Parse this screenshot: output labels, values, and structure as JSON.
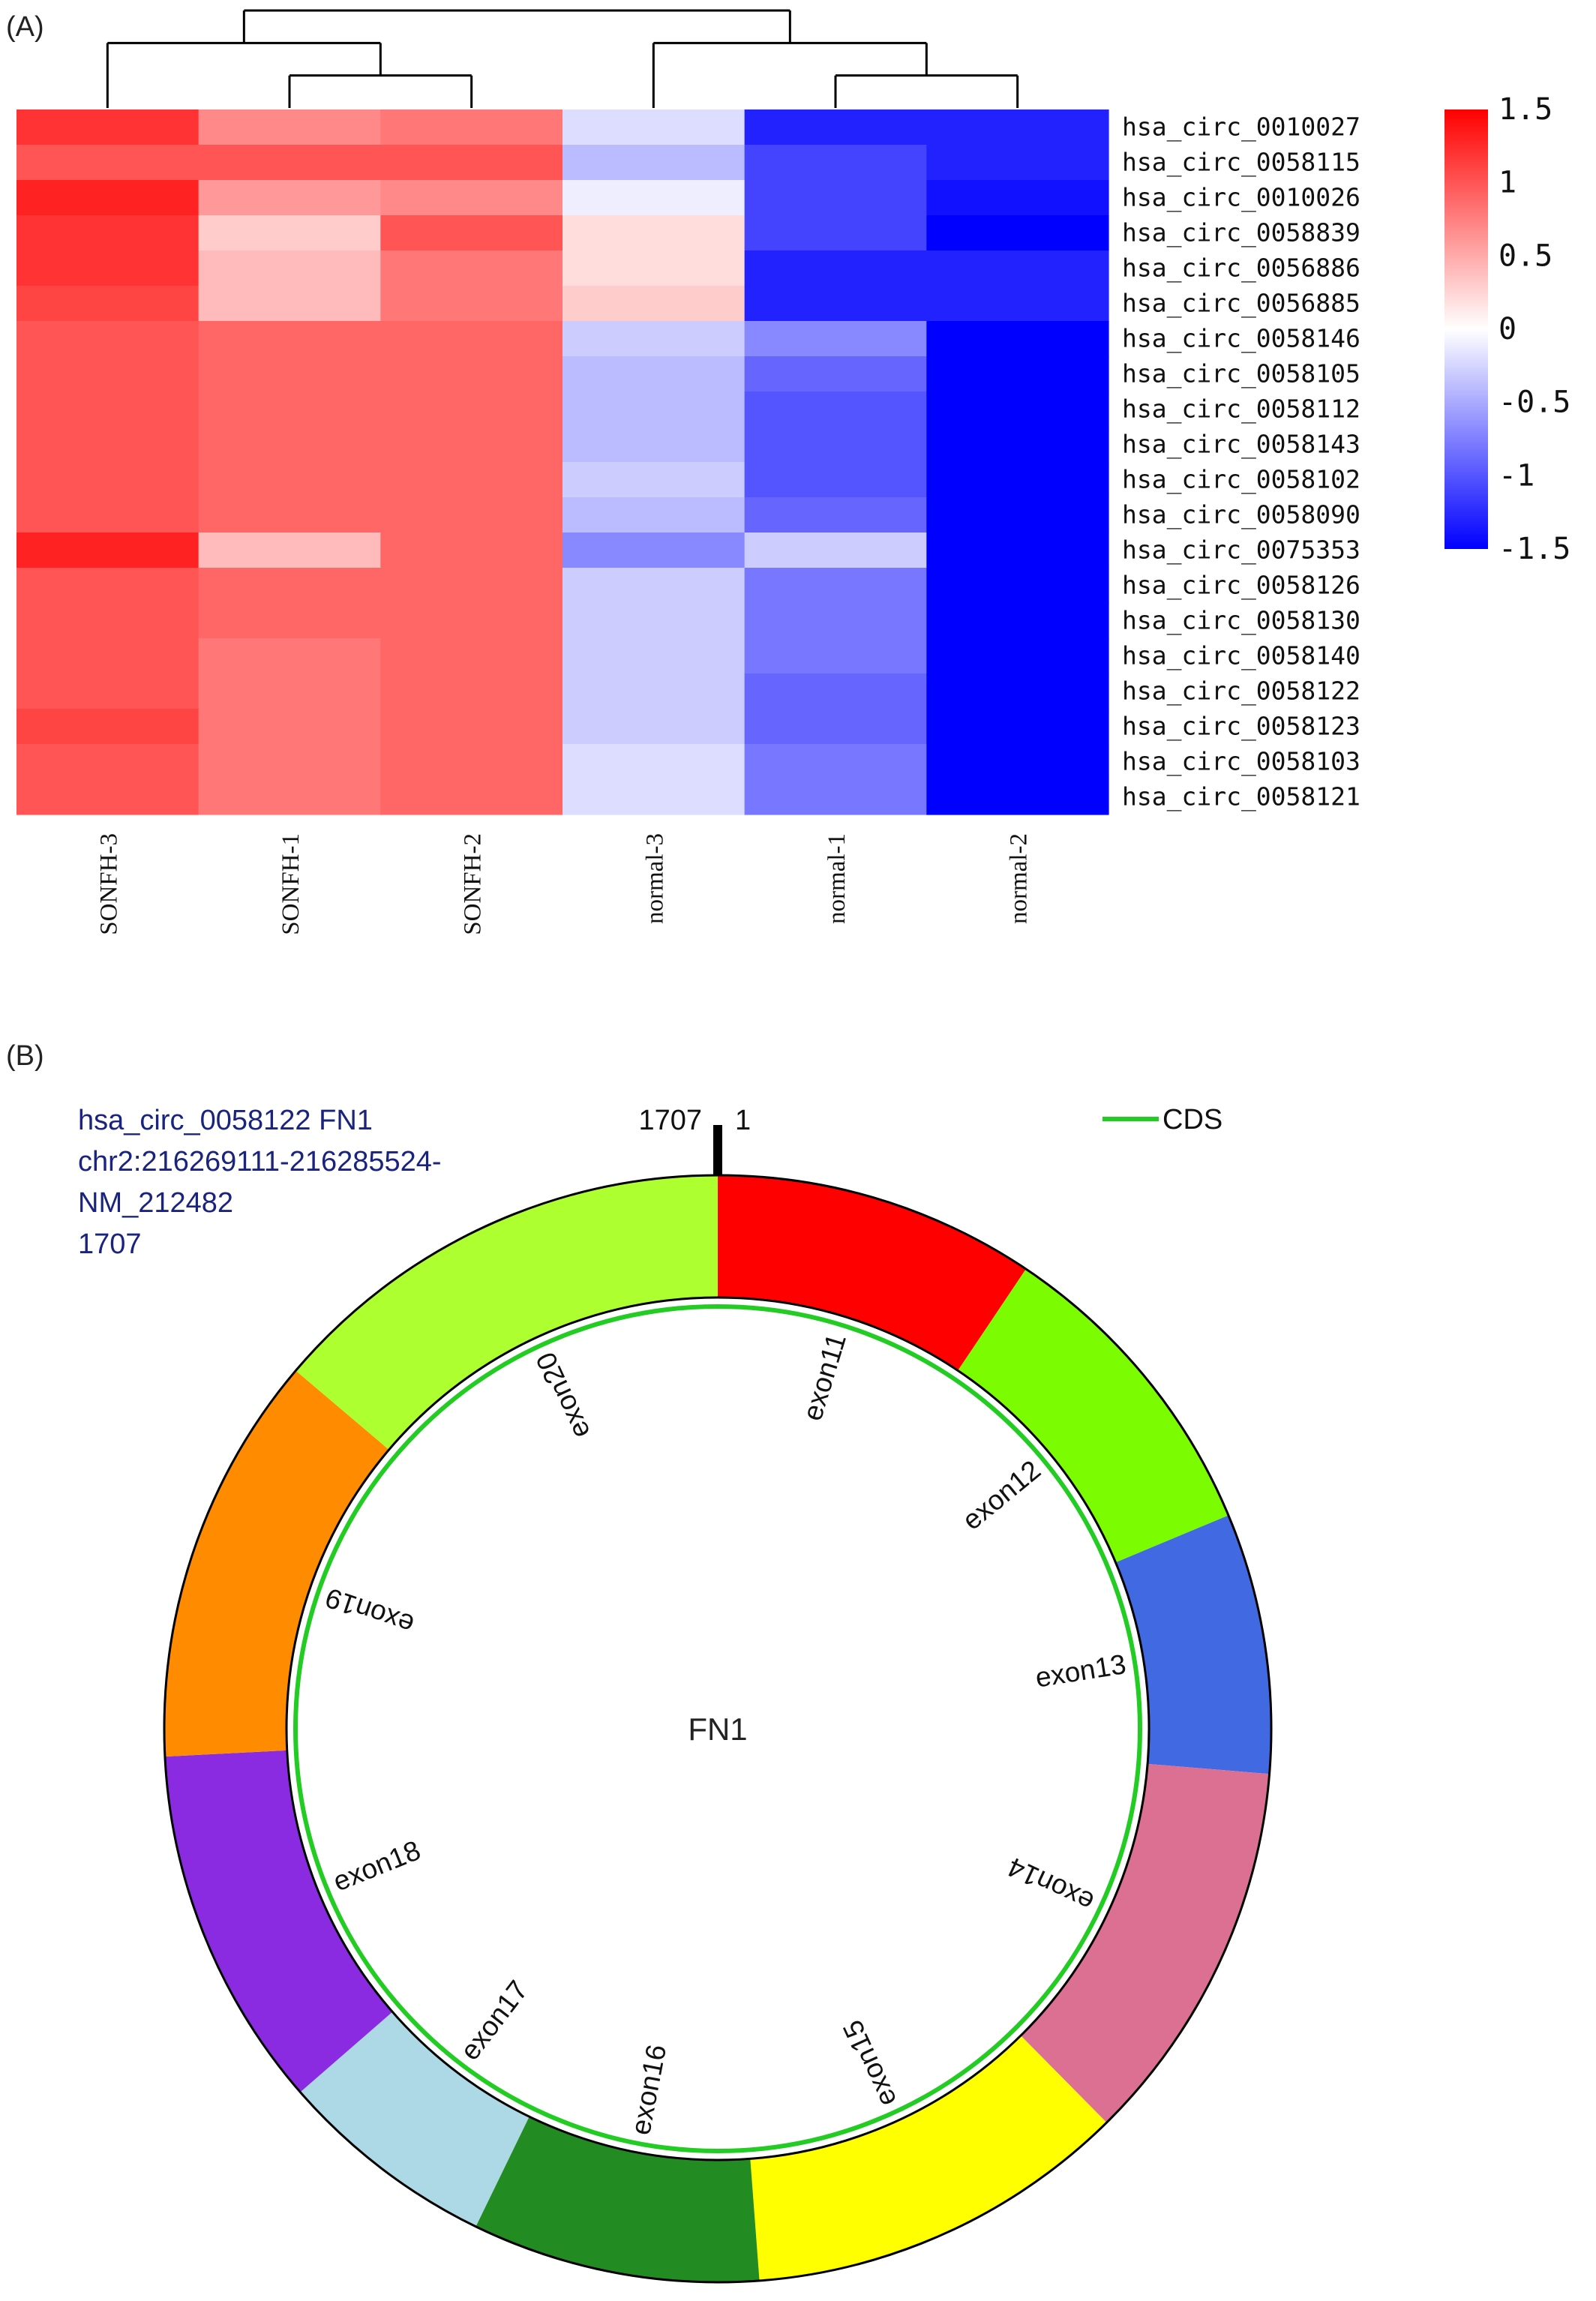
{
  "chart_data": [
    {
      "type": "heatmap",
      "panel_label": "(A)",
      "columns": [
        "SONFH-3",
        "SONFH-1",
        "SONFH-2",
        "normal-3",
        "normal-1",
        "normal-2"
      ],
      "rows": [
        "hsa_circ_0010027",
        "hsa_circ_0058115",
        "hsa_circ_0010026",
        "hsa_circ_0058839",
        "hsa_circ_0056886",
        "hsa_circ_0056885",
        "hsa_circ_0058146",
        "hsa_circ_0058105",
        "hsa_circ_0058112",
        "hsa_circ_0058143",
        "hsa_circ_0058102",
        "hsa_circ_0058090",
        "hsa_circ_0075353",
        "hsa_circ_0058126",
        "hsa_circ_0058130",
        "hsa_circ_0058140",
        "hsa_circ_0058122",
        "hsa_circ_0058123",
        "hsa_circ_0058103",
        "hsa_circ_0058121"
      ],
      "values": [
        [
          1.2,
          0.7,
          0.8,
          -0.2,
          -1.3,
          -1.3
        ],
        [
          1.0,
          1.0,
          1.0,
          -0.4,
          -1.1,
          -1.3
        ],
        [
          1.3,
          0.6,
          0.7,
          -0.1,
          -1.1,
          -1.4
        ],
        [
          1.2,
          0.3,
          1.0,
          0.2,
          -1.1,
          -1.5
        ],
        [
          1.2,
          0.4,
          0.8,
          0.2,
          -1.3,
          -1.3
        ],
        [
          1.1,
          0.4,
          0.8,
          0.3,
          -1.3,
          -1.3
        ],
        [
          1.0,
          0.9,
          0.9,
          -0.3,
          -0.7,
          -1.6
        ],
        [
          1.0,
          0.9,
          0.9,
          -0.4,
          -0.9,
          -1.6
        ],
        [
          1.0,
          0.9,
          0.9,
          -0.4,
          -1.0,
          -1.5
        ],
        [
          1.0,
          0.9,
          0.9,
          -0.4,
          -1.0,
          -1.5
        ],
        [
          1.0,
          0.9,
          0.9,
          -0.3,
          -1.0,
          -1.5
        ],
        [
          1.0,
          0.9,
          0.9,
          -0.4,
          -0.9,
          -1.5
        ],
        [
          1.3,
          0.4,
          0.9,
          -0.7,
          -0.3,
          -1.5
        ],
        [
          1.0,
          0.9,
          0.9,
          -0.3,
          -0.8,
          -1.5
        ],
        [
          1.0,
          0.9,
          0.9,
          -0.3,
          -0.8,
          -1.5
        ],
        [
          1.0,
          0.8,
          0.9,
          -0.3,
          -0.8,
          -1.6
        ],
        [
          1.0,
          0.8,
          0.9,
          -0.3,
          -0.9,
          -1.5
        ],
        [
          1.1,
          0.8,
          0.9,
          -0.3,
          -0.9,
          -1.5
        ],
        [
          1.0,
          0.8,
          0.9,
          -0.2,
          -0.8,
          -1.6
        ],
        [
          1.0,
          0.8,
          0.9,
          -0.2,
          -0.8,
          -1.6
        ]
      ],
      "colorbar": {
        "ticks": [
          "1.5",
          "1",
          "0.5",
          "0",
          "-0.5",
          "-1",
          "-1.5"
        ],
        "range": [
          -1.5,
          1.5
        ],
        "low_color": "#0000ff",
        "mid_color": "#ffffff",
        "high_color": "#ff0000"
      },
      "column_dendrogram": "((SONFH-3,(SONFH-1,SONFH-2)),(normal-3,(normal-1,normal-2)))"
    },
    {
      "type": "circular map",
      "panel_label": "(B)",
      "info_lines": [
        "hsa_circ_0058122  FN1",
        "chr2:216269111-216285524-",
        "NM_212482",
        "1707"
      ],
      "legend_label": "CDS",
      "cds_color": "#22cc22",
      "center_label": "FN1",
      "start_label": "1",
      "end_label": "1707",
      "total_length": 1707,
      "exons": [
        {
          "label": "exon11",
          "fraction": 0.094,
          "color": "#ff0000"
        },
        {
          "label": "exon12",
          "fraction": 0.093,
          "color": "#7cfc00"
        },
        {
          "label": "exon13",
          "fraction": 0.076,
          "color": "#4169e1"
        },
        {
          "label": "exon14",
          "fraction": 0.113,
          "color": "#db7093"
        },
        {
          "label": "exon15",
          "fraction": 0.112,
          "color": "#ffff00"
        },
        {
          "label": "exon16",
          "fraction": 0.084,
          "color": "#228b22"
        },
        {
          "label": "exon17",
          "fraction": 0.064,
          "color": "#add8e6"
        },
        {
          "label": "exon18",
          "fraction": 0.106,
          "color": "#8a2be2"
        },
        {
          "label": "exon19",
          "fraction": 0.12,
          "color": "#ff8c00"
        },
        {
          "label": "exon20",
          "fraction": 0.138,
          "color": "#adff2f"
        }
      ]
    }
  ]
}
